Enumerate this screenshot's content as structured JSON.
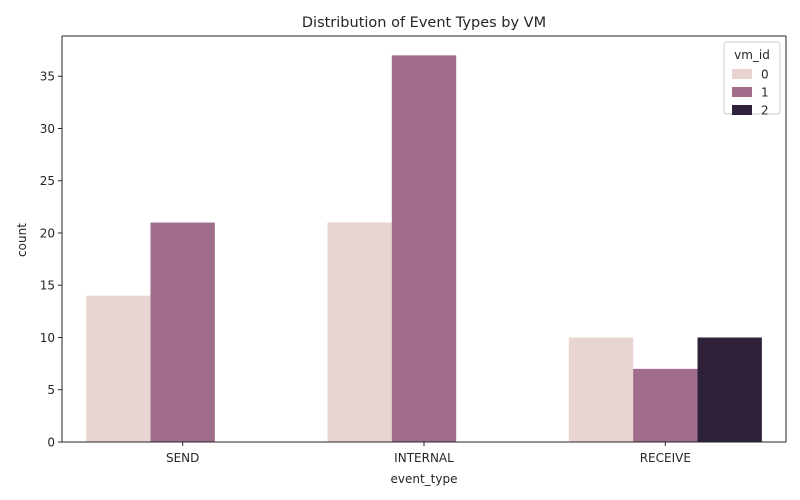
{
  "chart_data": {
    "type": "bar",
    "title": "Distribution of Event Types by VM",
    "xlabel": "event_type",
    "ylabel": "count",
    "categories": [
      "SEND",
      "INTERNAL",
      "RECEIVE"
    ],
    "series": [
      {
        "name": "0",
        "color": "#e8d4d0",
        "values": [
          14,
          21,
          10
        ]
      },
      {
        "name": "1",
        "color": "#a06e8c",
        "values": [
          21,
          37,
          7
        ]
      },
      {
        "name": "2",
        "color": "#2e2139",
        "values": [
          null,
          null,
          10
        ]
      }
    ],
    "ylim": [
      0,
      38.85
    ],
    "yticks": [
      0,
      5,
      10,
      15,
      20,
      25,
      30,
      35
    ],
    "grid": false,
    "legend": {
      "title": "vm_id",
      "placement": "top-right"
    }
  }
}
